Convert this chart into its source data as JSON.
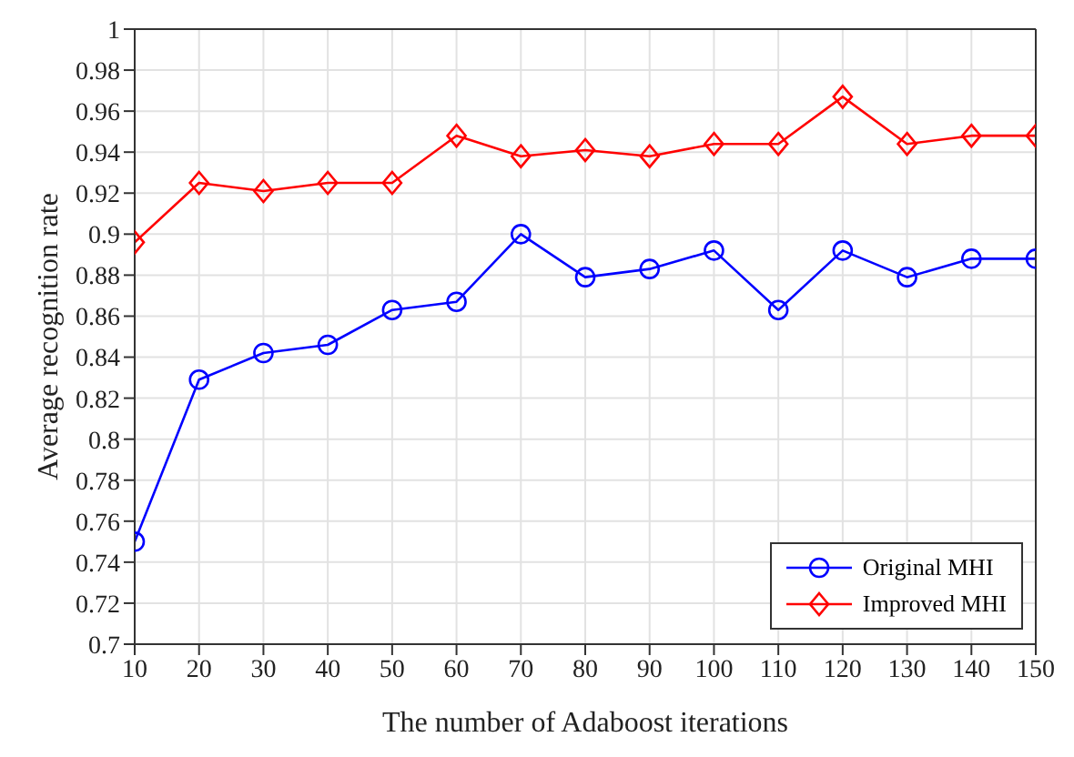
{
  "chart_data": {
    "type": "line",
    "xlabel": "The number of Adaboost iterations",
    "ylabel": "Average recognition rate",
    "x": [
      10,
      20,
      30,
      40,
      50,
      60,
      70,
      80,
      90,
      100,
      110,
      120,
      130,
      140,
      150
    ],
    "series": [
      {
        "name": "Original MHI",
        "color": "#0000ff",
        "marker": "circle",
        "values": [
          0.75,
          0.829,
          0.842,
          0.846,
          0.863,
          0.867,
          0.9,
          0.879,
          0.883,
          0.892,
          0.863,
          0.892,
          0.879,
          0.888,
          0.888
        ]
      },
      {
        "name": "Improved MHI",
        "color": "#ff0000",
        "marker": "diamond",
        "values": [
          0.896,
          0.925,
          0.921,
          0.925,
          0.925,
          0.948,
          0.938,
          0.941,
          0.938,
          0.944,
          0.944,
          0.967,
          0.944,
          0.948,
          0.948
        ]
      }
    ],
    "xlim": [
      10,
      150
    ],
    "xticks": [
      10,
      20,
      30,
      40,
      50,
      60,
      70,
      80,
      90,
      100,
      110,
      120,
      130,
      140,
      150
    ],
    "ylim": [
      0.7,
      1
    ],
    "yticks": [
      0.7,
      0.72,
      0.74,
      0.76,
      0.78,
      0.8,
      0.82,
      0.84,
      0.86,
      0.88,
      0.9,
      0.92,
      0.94,
      0.96,
      0.98,
      1
    ],
    "grid": true,
    "legend": "bottom right",
    "line_style": "solid"
  }
}
